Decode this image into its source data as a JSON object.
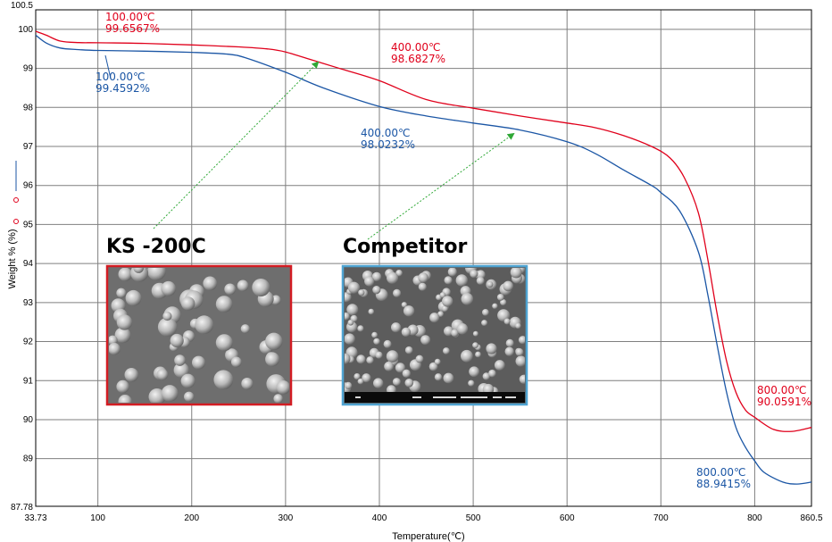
{
  "chart_data": {
    "type": "line",
    "xlabel": "Temperature(℃)",
    "ylabel": "Weight % (%)",
    "xlim": [
      33.73,
      860.5
    ],
    "ylim": [
      87.78,
      100.5
    ],
    "x_ticks": [
      {
        "v": 33.73,
        "label": "33.73"
      },
      {
        "v": 100,
        "label": "100"
      },
      {
        "v": 200,
        "label": "200"
      },
      {
        "v": 300,
        "label": "300"
      },
      {
        "v": 400,
        "label": "400"
      },
      {
        "v": 500,
        "label": "500"
      },
      {
        "v": 600,
        "label": "600"
      },
      {
        "v": 700,
        "label": "700"
      },
      {
        "v": 800,
        "label": "800"
      },
      {
        "v": 860.5,
        "label": "860.5"
      }
    ],
    "y_ticks": [
      {
        "v": 87.78,
        "label": "87.78"
      },
      {
        "v": 89,
        "label": "89"
      },
      {
        "v": 90,
        "label": "90"
      },
      {
        "v": 91,
        "label": "91"
      },
      {
        "v": 92,
        "label": "92"
      },
      {
        "v": 93,
        "label": "93"
      },
      {
        "v": 94,
        "label": "94"
      },
      {
        "v": 95,
        "label": "95"
      },
      {
        "v": 96,
        "label": "96"
      },
      {
        "v": 97,
        "label": "97"
      },
      {
        "v": 98,
        "label": "98"
      },
      {
        "v": 99,
        "label": "99"
      },
      {
        "v": 100,
        "label": "100"
      },
      {
        "v": 100.5,
        "label": "100.5"
      }
    ],
    "grid": true,
    "legend": "left",
    "series": [
      {
        "color": "#e0001b",
        "x": [
          33.73,
          45,
          60,
          80,
          100,
          150,
          200,
          250,
          280,
          300,
          330,
          360,
          400,
          450,
          500,
          550,
          600,
          630,
          660,
          690,
          710,
          725,
          740,
          750,
          760,
          770,
          780,
          790,
          800,
          820,
          840,
          860.5
        ],
        "y": [
          99.95,
          99.85,
          99.7,
          99.66,
          99.6567,
          99.64,
          99.6,
          99.55,
          99.5,
          99.42,
          99.2,
          98.98,
          98.6827,
          98.2,
          97.98,
          97.78,
          97.6,
          97.48,
          97.28,
          97.0,
          96.7,
          96.2,
          95.3,
          94.1,
          92.7,
          91.5,
          90.7,
          90.25,
          90.0591,
          89.75,
          89.7,
          89.8
        ],
        "annotations": [
          {
            "x": 100,
            "temp": "100.00℃",
            "value": "99.6567%"
          },
          {
            "x": 400,
            "temp": "400.00℃",
            "value": "98.6827%"
          },
          {
            "x": 800,
            "temp": "800.00℃",
            "value": "90.0591%"
          }
        ]
      },
      {
        "color": "#1b56a5",
        "x": [
          33.73,
          45,
          60,
          80,
          100,
          150,
          200,
          240,
          260,
          300,
          340,
          400,
          450,
          500,
          550,
          600,
          630,
          660,
          690,
          700,
          720,
          740,
          750,
          760,
          770,
          780,
          790,
          800,
          810,
          830,
          845,
          860.5
        ],
        "y": [
          99.85,
          99.65,
          99.52,
          99.48,
          99.4592,
          99.44,
          99.41,
          99.36,
          99.25,
          98.9,
          98.5,
          98.0232,
          97.78,
          97.6,
          97.42,
          97.12,
          96.82,
          96.4,
          96.0,
          95.82,
          95.35,
          94.3,
          93.2,
          91.9,
          90.7,
          89.8,
          89.3,
          88.9415,
          88.65,
          88.4,
          88.35,
          88.4
        ],
        "annotations": [
          {
            "x": 100,
            "temp": "100.00℃",
            "value": "99.4592%"
          },
          {
            "x": 400,
            "temp": "400.00℃",
            "value": "98.0232%"
          },
          {
            "x": 800,
            "temp": "800.00℃",
            "value": "88.9415%"
          }
        ]
      }
    ],
    "inset_samples": [
      {
        "title": "KS -200C",
        "border_color": "#d31c23"
      },
      {
        "title": "Competitor",
        "border_color": "#4fa3d1"
      }
    ]
  },
  "arrow_color": "#2fa836"
}
